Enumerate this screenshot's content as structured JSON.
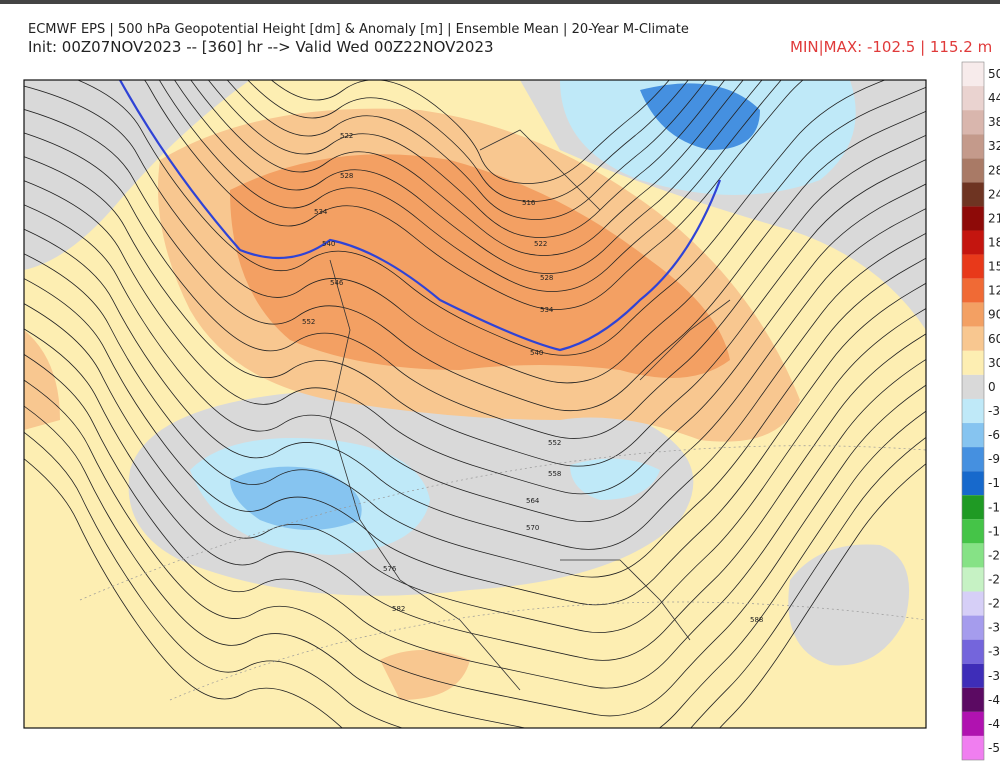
{
  "header": {
    "title": "ECMWF EPS | 500 hPa Geopotential Height [dm] & Anomaly [m] | Ensemble Mean | 20-Year M-Climate",
    "init": "Init: 00Z07NOV2023 -- [360] hr --> Valid Wed 00Z22NOV2023",
    "minmax": "MIN|MAX: -102.5 | 115.2 m"
  },
  "map": {
    "contour_labels": [
      "522",
      "528",
      "534",
      "540",
      "546",
      "552",
      "516",
      "522",
      "528",
      "534",
      "540",
      "552",
      "558",
      "564",
      "570",
      "576",
      "582",
      "588"
    ]
  },
  "legend": {
    "entries": [
      {
        "label": "50",
        "color": "#f7ebeb"
      },
      {
        "label": "44",
        "color": "#ead3d0"
      },
      {
        "label": "38",
        "color": "#d9b6ad"
      },
      {
        "label": "32",
        "color": "#c49a8b"
      },
      {
        "label": "28",
        "color": "#a97a66"
      },
      {
        "label": "24",
        "color": "#6e3422"
      },
      {
        "label": "21",
        "color": "#8e0a08"
      },
      {
        "label": "18",
        "color": "#c4150f"
      },
      {
        "label": "15",
        "color": "#e8391a"
      },
      {
        "label": "12",
        "color": "#f06a35"
      },
      {
        "label": "90",
        "color": "#f3a063"
      },
      {
        "label": "60",
        "color": "#f8c790"
      },
      {
        "label": "30",
        "color": "#fdeeb2"
      },
      {
        "label": "0",
        "color": "#d9d9d9"
      },
      {
        "label": "-3",
        "color": "#bfe9f8"
      },
      {
        "label": "-6",
        "color": "#86c4f0"
      },
      {
        "label": "-9",
        "color": "#4590e0"
      },
      {
        "label": "-1",
        "color": "#1769cc"
      },
      {
        "label": "-1",
        "color": "#1f9a24"
      },
      {
        "label": "-1",
        "color": "#45c448"
      },
      {
        "label": "-2",
        "color": "#86e286"
      },
      {
        "label": "-2",
        "color": "#c6f2c4"
      },
      {
        "label": "-2",
        "color": "#d6cff7"
      },
      {
        "label": "-3",
        "color": "#a59ced"
      },
      {
        "label": "-3",
        "color": "#7465dc"
      },
      {
        "label": "-3",
        "color": "#3e2db8"
      },
      {
        "label": "-4",
        "color": "#5b0a62"
      },
      {
        "label": "-4",
        "color": "#b012b0"
      },
      {
        "label": "-5",
        "color": "#f07ef0"
      }
    ]
  }
}
